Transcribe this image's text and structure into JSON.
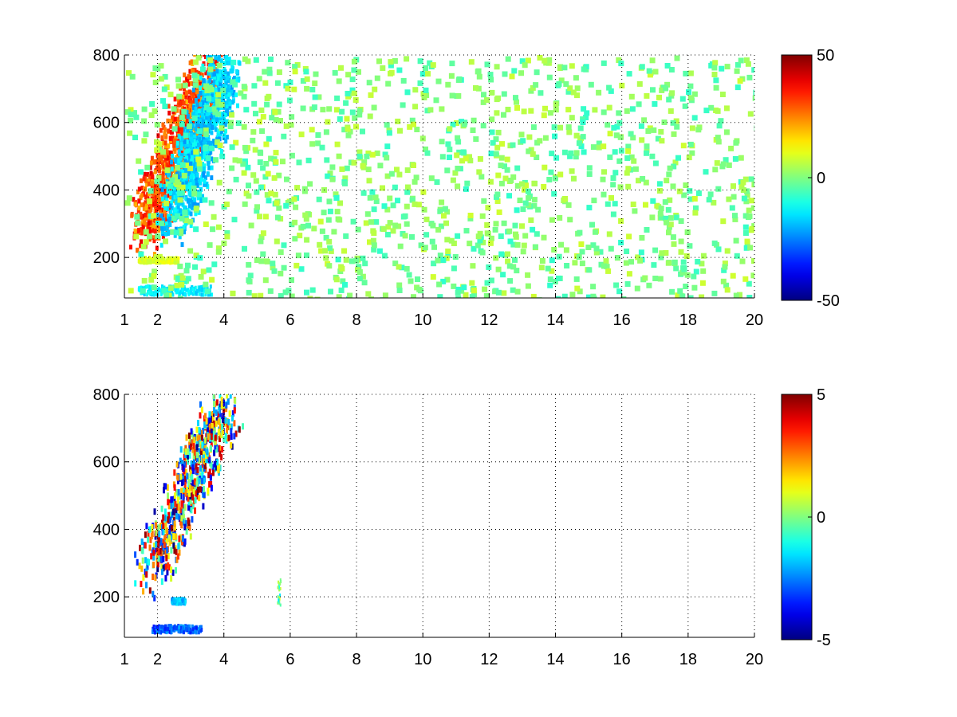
{
  "chart_data": [
    {
      "type": "heatmap",
      "title": "",
      "xlabel": "",
      "ylabel": "",
      "xlim": [
        1,
        20
      ],
      "ylim": [
        80,
        800
      ],
      "x_ticks": [
        1,
        2,
        4,
        6,
        8,
        10,
        12,
        14,
        16,
        18,
        20
      ],
      "y_ticks": [
        200,
        400,
        600,
        800
      ],
      "grid": true,
      "colorbar": {
        "min": -50,
        "max": 50,
        "ticks": [
          -50,
          0,
          50
        ],
        "colormap": "jet"
      },
      "features": [
        {
          "shape": "ridge",
          "x_range": [
            1.6,
            3.4
          ],
          "y_range": [
            290,
            740
          ],
          "value": 35
        },
        {
          "shape": "ridge",
          "x_range": [
            2.4,
            4.0
          ],
          "y_range": [
            320,
            760
          ],
          "value": -20
        },
        {
          "shape": "band",
          "x_range": [
            1.4,
            3.6
          ],
          "y_range": [
            95,
            120
          ],
          "value": -15
        },
        {
          "shape": "band",
          "x_range": [
            1.4,
            2.6
          ],
          "y_range": [
            190,
            205
          ],
          "value": 10
        },
        {
          "shape": "scatter-noise",
          "x_range": [
            1,
            20
          ],
          "y_range": [
            80,
            800
          ],
          "value_range": [
            -8,
            8
          ]
        }
      ]
    },
    {
      "type": "heatmap",
      "title": "",
      "xlabel": "",
      "ylabel": "",
      "xlim": [
        1,
        20
      ],
      "ylim": [
        80,
        800
      ],
      "x_ticks": [
        1,
        2,
        4,
        6,
        8,
        10,
        12,
        14,
        16,
        18,
        20
      ],
      "y_ticks": [
        200,
        400,
        600,
        800
      ],
      "grid": true,
      "colorbar": {
        "min": -5,
        "max": 5,
        "ticks": [
          -5,
          0,
          5
        ],
        "colormap": "jet"
      },
      "features": [
        {
          "shape": "ridge",
          "x_range": [
            1.7,
            4.1
          ],
          "y_range": [
            280,
            790
          ],
          "value_range": [
            -5,
            5
          ]
        },
        {
          "shape": "band",
          "x_range": [
            1.8,
            3.3
          ],
          "y_range": [
            100,
            120
          ],
          "value": -3
        },
        {
          "shape": "band",
          "x_range": [
            2.4,
            2.8
          ],
          "y_range": [
            185,
            200
          ],
          "value": -2
        },
        {
          "shape": "spot",
          "x_range": [
            5.6,
            5.7
          ],
          "y_range": [
            180,
            260
          ],
          "value": 0
        }
      ]
    }
  ]
}
